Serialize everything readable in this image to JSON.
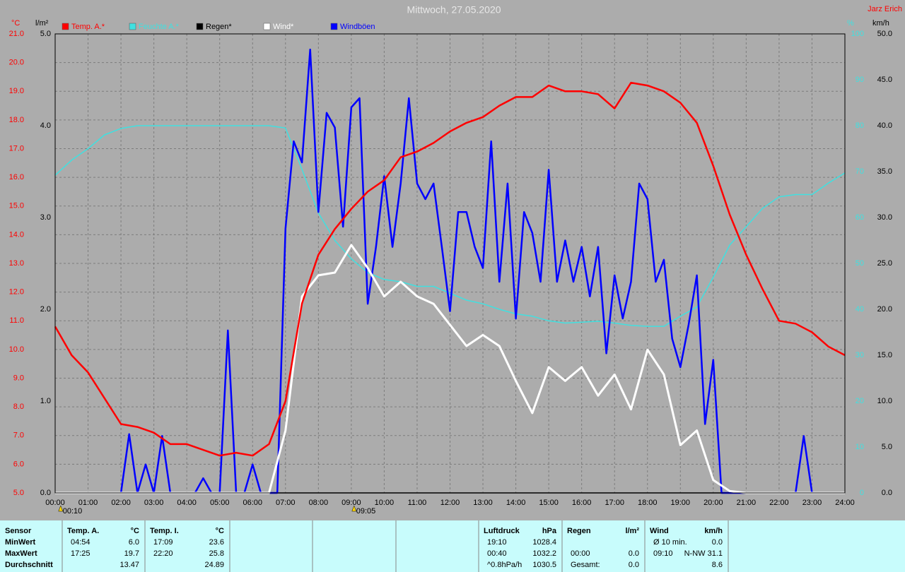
{
  "chart_data": {
    "type": "line",
    "title": "Mittwoch, 27.05.2020",
    "author": "Jarz Erich",
    "y_unit": "°C",
    "y2_unit": "l/m²",
    "y3_unit": "%",
    "y4_unit": "km/h",
    "grid": true,
    "xlim": [
      0,
      24
    ],
    "xticks": [
      {
        "value": 0,
        "label": "00:00"
      },
      {
        "value": 1,
        "label": "01:00"
      },
      {
        "value": 2,
        "label": "02:00"
      },
      {
        "value": 3,
        "label": "03:00"
      },
      {
        "value": 4,
        "label": "04:00"
      },
      {
        "value": 5,
        "label": "05:00"
      },
      {
        "value": 6,
        "label": "06:00"
      },
      {
        "value": 7,
        "label": "07:00"
      },
      {
        "value": 8,
        "label": "08:00"
      },
      {
        "value": 9,
        "label": "09:00"
      },
      {
        "value": 10,
        "label": "10:00"
      },
      {
        "value": 11,
        "label": "11:00"
      },
      {
        "value": 12,
        "label": "12:00"
      },
      {
        "value": 13,
        "label": "13:00"
      },
      {
        "value": 14,
        "label": "14:00"
      },
      {
        "value": 15,
        "label": "15:00"
      },
      {
        "value": 16,
        "label": "16:00"
      },
      {
        "value": 17,
        "label": "17:00"
      },
      {
        "value": 18,
        "label": "18:00"
      },
      {
        "value": 19,
        "label": "19:00"
      },
      {
        "value": 20,
        "label": "20:00"
      },
      {
        "value": 21,
        "label": "21:00"
      },
      {
        "value": 22,
        "label": "22:00"
      },
      {
        "value": 23,
        "label": "23:00"
      },
      {
        "value": 24,
        "label": "24:00"
      }
    ],
    "ylim": [
      5,
      21
    ],
    "yticks": [
      {
        "value": 5,
        "label": "5.0"
      },
      {
        "value": 6,
        "label": "6.0"
      },
      {
        "value": 7,
        "label": "7.0"
      },
      {
        "value": 8,
        "label": "8.0"
      },
      {
        "value": 9,
        "label": "9.0"
      },
      {
        "value": 10,
        "label": "10.0"
      },
      {
        "value": 11,
        "label": "11.0"
      },
      {
        "value": 12,
        "label": "12.0"
      },
      {
        "value": 13,
        "label": "13.0"
      },
      {
        "value": 14,
        "label": "14.0"
      },
      {
        "value": 15,
        "label": "15.0"
      },
      {
        "value": 16,
        "label": "16.0"
      },
      {
        "value": 17,
        "label": "17.0"
      },
      {
        "value": 18,
        "label": "18.0"
      },
      {
        "value": 19,
        "label": "19.0"
      },
      {
        "value": 20,
        "label": "20.0"
      },
      {
        "value": 21,
        "label": "21.0"
      }
    ],
    "y2lim": [
      0,
      5
    ],
    "y2ticks": [
      {
        "value": 0,
        "label": "0.0"
      },
      {
        "value": 1,
        "label": "1.0"
      },
      {
        "value": 2,
        "label": "2.0"
      },
      {
        "value": 3,
        "label": "3.0"
      },
      {
        "value": 4,
        "label": "4.0"
      },
      {
        "value": 5,
        "label": "5.0"
      }
    ],
    "y3lim": [
      0,
      100
    ],
    "y3ticks": [
      0,
      10,
      20,
      30,
      40,
      50,
      60,
      70,
      80,
      90,
      100
    ],
    "y4lim": [
      0,
      50
    ],
    "y4ticks": [
      {
        "value": 0,
        "label": "0.0"
      },
      {
        "value": 5,
        "label": "5.0"
      },
      {
        "value": 10,
        "label": "10.0"
      },
      {
        "value": 15,
        "label": "15.0"
      },
      {
        "value": 20,
        "label": "20.0"
      },
      {
        "value": 25,
        "label": "25.0"
      },
      {
        "value": 30,
        "label": "30.0"
      },
      {
        "value": 35,
        "label": "35.0"
      },
      {
        "value": 40,
        "label": "40.0"
      },
      {
        "value": 45,
        "label": "45.0"
      },
      {
        "value": 50,
        "label": "50.0"
      }
    ],
    "annotations": [
      {
        "x": 0.1667,
        "label": "00:10"
      },
      {
        "x": 9.0833,
        "label": "09:05"
      }
    ],
    "series": [
      {
        "name": "Temp. A.*",
        "color": "#ff0000",
        "axis": "y",
        "x": [
          0,
          0.5,
          1,
          1.5,
          2,
          2.5,
          3,
          3.5,
          4,
          4.5,
          5,
          5.5,
          6,
          6.5,
          7,
          7.5,
          8,
          8.5,
          9,
          9.5,
          10,
          10.5,
          11,
          11.5,
          12,
          12.5,
          13,
          13.5,
          14,
          14.5,
          15,
          15.5,
          16,
          16.5,
          17,
          17.5,
          18,
          18.5,
          19,
          19.5,
          20,
          20.5,
          21,
          21.5,
          22,
          22.5,
          23,
          23.5,
          24
        ],
        "values": [
          10.8,
          9.8,
          9.2,
          8.3,
          7.4,
          7.3,
          7.1,
          6.7,
          6.7,
          6.5,
          6.3,
          6.4,
          6.3,
          6.7,
          8.2,
          11.6,
          13.3,
          14.2,
          14.9,
          15.5,
          15.9,
          16.7,
          16.9,
          17.2,
          17.6,
          17.9,
          18.1,
          18.5,
          18.8,
          18.8,
          19.2,
          19.0,
          19.0,
          18.9,
          18.4,
          19.3,
          19.2,
          19.0,
          18.6,
          17.9,
          16.4,
          14.7,
          13.3,
          12.1,
          11.0,
          10.9,
          10.6,
          10.1,
          9.8
        ]
      },
      {
        "name": "Feuchte A.*",
        "color": "#40e0e0",
        "axis": "y3",
        "x": [
          0,
          0.5,
          1,
          1.5,
          2,
          2.5,
          3,
          3.5,
          4,
          4.5,
          5,
          5.5,
          6,
          6.5,
          7,
          7.5,
          8,
          8.5,
          9,
          9.5,
          10,
          10.5,
          11,
          11.5,
          12,
          12.5,
          13,
          13.5,
          14,
          14.5,
          15,
          15.5,
          16,
          16.5,
          17,
          17.5,
          18,
          18.5,
          19,
          19.5,
          20,
          20.5,
          21,
          21.5,
          22,
          22.5,
          23,
          23.5,
          24
        ],
        "values": [
          69.2,
          72.5,
          75,
          78,
          79.4,
          80,
          80,
          80,
          80,
          80,
          80,
          80,
          80,
          80,
          79.5,
          70.5,
          61,
          55,
          51,
          48,
          46.5,
          46,
          45,
          45,
          43.5,
          42,
          41.2,
          40,
          39,
          38.5,
          37.5,
          37,
          37.2,
          37.4,
          37,
          36.5,
          36.3,
          36.3,
          38.5,
          40.5,
          47,
          54,
          58,
          62,
          64.5,
          65,
          65,
          67.5,
          69.7
        ]
      },
      {
        "name": "Regen*",
        "color": "#000000",
        "axis": "y2",
        "x": [
          0,
          24
        ],
        "values": [
          0,
          0
        ]
      },
      {
        "name": "Wind*",
        "color": "#ffffff",
        "axis": "y4",
        "x": [
          0,
          0.5,
          1,
          1.5,
          2,
          2.5,
          3,
          3.5,
          4,
          4.5,
          5,
          5.5,
          6,
          6.5,
          7,
          7.5,
          8,
          8.5,
          9,
          9.5,
          10,
          10.5,
          11,
          11.5,
          12,
          12.5,
          13,
          13.5,
          14,
          14.5,
          15,
          15.5,
          16,
          16.5,
          17,
          17.5,
          18,
          18.5,
          19,
          19.5,
          20,
          20.5,
          21,
          21.5,
          22,
          22.5,
          23,
          23.5,
          24
        ],
        "values": [
          0,
          0,
          0,
          0,
          0,
          0,
          0,
          0,
          0,
          0,
          0,
          0,
          0,
          0,
          6.8,
          21.4,
          23.7,
          24,
          27,
          24.5,
          21.4,
          23,
          21.4,
          20.6,
          18.3,
          16,
          17.2,
          16,
          12.2,
          8.7,
          13.7,
          12.2,
          13.7,
          10.6,
          12.9,
          9.1,
          15.6,
          12.9,
          5.2,
          6.8,
          1.4,
          0.2,
          0,
          0,
          0,
          0,
          0,
          0,
          0
        ]
      },
      {
        "name": "Windböen",
        "color": "#0000ff",
        "axis": "y4",
        "x": [
          0,
          0.25,
          0.5,
          0.75,
          1,
          1.25,
          1.5,
          1.75,
          2,
          2.25,
          2.5,
          2.75,
          3,
          3.25,
          3.5,
          3.75,
          4,
          4.25,
          4.5,
          4.75,
          5,
          5.25,
          5.5,
          5.75,
          6,
          6.25,
          6.5,
          6.75,
          7,
          7.25,
          7.5,
          7.75,
          8,
          8.25,
          8.5,
          8.75,
          9,
          9.25,
          9.5,
          9.75,
          10,
          10.25,
          10.5,
          10.75,
          11,
          11.25,
          11.5,
          11.75,
          12,
          12.25,
          12.5,
          12.75,
          13,
          13.25,
          13.5,
          13.75,
          14,
          14.25,
          14.5,
          14.75,
          15,
          15.25,
          15.5,
          15.75,
          16,
          16.25,
          16.5,
          16.75,
          17,
          17.25,
          17.5,
          17.75,
          18,
          18.25,
          18.5,
          18.75,
          19,
          19.25,
          19.5,
          19.75,
          20,
          20.25,
          20.5,
          20.75,
          21,
          21.25,
          21.5,
          21.75,
          22,
          22.25,
          22.5,
          22.75,
          23,
          23.25,
          23.5,
          23.75,
          24
        ],
        "values": [
          0,
          0,
          0,
          0,
          0,
          0,
          0,
          0,
          0,
          6.4,
          0,
          3.1,
          0,
          6.2,
          0,
          0,
          0,
          0,
          1.6,
          0,
          0,
          17.7,
          0,
          0,
          3.1,
          0,
          0,
          0,
          28.8,
          38.3,
          36,
          48.3,
          30.6,
          41.4,
          39.8,
          29,
          42,
          43,
          20.6,
          26.8,
          34.5,
          26.8,
          33.7,
          43,
          33.7,
          32,
          33.7,
          26.8,
          19.8,
          30.6,
          30.6,
          26.8,
          24.5,
          38.3,
          23,
          33.7,
          19,
          30.6,
          28.3,
          23,
          35.2,
          23,
          27.5,
          23,
          26.8,
          21.4,
          26.8,
          15.2,
          23.7,
          19,
          23,
          33.7,
          32,
          23,
          25.4,
          16.8,
          13.7,
          18.3,
          23.7,
          7.5,
          14.5,
          0,
          0,
          0,
          0,
          0,
          0,
          0,
          0,
          0,
          0,
          6.2,
          0,
          0,
          0,
          0,
          0
        ]
      }
    ]
  },
  "summary_table": {
    "columns": [
      {
        "header": "Sensor",
        "rows": [
          [
            "MinWert"
          ],
          [
            "MaxWert"
          ],
          [
            "Durchschnitt"
          ]
        ]
      },
      {
        "header": "Temp. A.",
        "unit": "°C",
        "rows": [
          [
            "04:54",
            "6.0"
          ],
          [
            "17:25",
            "19.7"
          ],
          [
            "13.47"
          ]
        ]
      },
      {
        "header": "Temp. I.",
        "unit": "°C",
        "rows": [
          [
            "17:09",
            "23.6"
          ],
          [
            "22:20",
            "25.8"
          ],
          [
            "24.89"
          ]
        ]
      },
      {
        "header": "Luftdruck",
        "unit": "hPa",
        "rows": [
          [
            "19:10",
            "1028.4"
          ],
          [
            "00:40",
            "1032.2"
          ],
          [
            "^0.8hPa/h",
            "1030.5"
          ]
        ]
      },
      {
        "header": "Regen",
        "unit": "l/m²",
        "rows": [
          [],
          [
            "00:00",
            "0.0"
          ],
          [
            "Gesamt:",
            "0.0"
          ]
        ]
      },
      {
        "header": "Wind",
        "unit": "km/h",
        "rows": [
          [
            "Ø 10 min.",
            "0.0"
          ],
          [
            "09:10",
            "N-NW 31.1"
          ],
          [
            "8.6"
          ]
        ]
      }
    ]
  }
}
